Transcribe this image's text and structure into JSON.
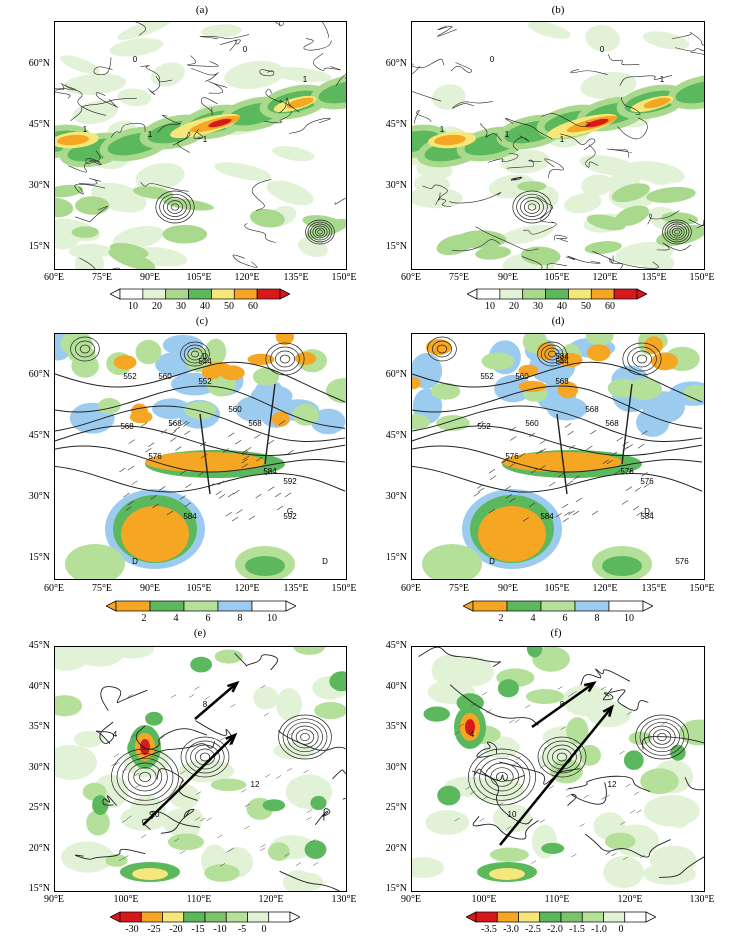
{
  "panels": [
    {
      "id": "a",
      "label": "(a)",
      "lat": [
        "60°N",
        "45°N",
        "30°N",
        "15°N"
      ],
      "lon": [
        "60°E",
        "75°E",
        "90°E",
        "105°E",
        "120°E",
        "135°E",
        "150°E"
      ],
      "colorbar": [
        "10",
        "20",
        "30",
        "40",
        "50",
        "60"
      ]
    },
    {
      "id": "b",
      "label": "(b)",
      "lat": [
        "60°N",
        "45°N",
        "30°N",
        "15°N"
      ],
      "lon": [
        "60°E",
        "75°E",
        "90°E",
        "105°E",
        "120°E",
        "135°E",
        "150°E"
      ],
      "colorbar": [
        "10",
        "20",
        "30",
        "40",
        "50",
        "60"
      ]
    },
    {
      "id": "c",
      "label": "(c)",
      "lat": [
        "60°N",
        "45°N",
        "30°N",
        "15°N"
      ],
      "lon": [
        "60°E",
        "75°E",
        "90°E",
        "105°E",
        "120°E",
        "135°E",
        "150°E"
      ],
      "colorbar": [
        "2",
        "4",
        "6",
        "8",
        "10"
      ],
      "contour_labels": [
        "552",
        "560",
        "544",
        "552",
        "568",
        "568",
        "560",
        "568",
        "576",
        "584",
        "592",
        "592",
        "584",
        "D",
        "D",
        "D",
        "G"
      ]
    },
    {
      "id": "d",
      "label": "(d)",
      "lat": [
        "60°N",
        "45°N",
        "30°N",
        "15°N"
      ],
      "lon": [
        "60°E",
        "75°E",
        "90°E",
        "105°E",
        "120°E",
        "135°E",
        "150°E"
      ],
      "colorbar": [
        "2",
        "4",
        "6",
        "8",
        "10"
      ],
      "contour_labels": [
        "552",
        "560",
        "544",
        "568",
        "552",
        "560",
        "568",
        "568",
        "576",
        "576",
        "576",
        "584",
        "584",
        "584",
        "576",
        "D",
        "D"
      ]
    },
    {
      "id": "e",
      "label": "(e)",
      "lat": [
        "45°N",
        "40°N",
        "35°N",
        "30°N",
        "25°N",
        "20°N",
        "15°N"
      ],
      "lon": [
        "90°E",
        "100°E",
        "110°E",
        "120°E",
        "130°E"
      ],
      "colorbar": [
        "-30",
        "-25",
        "-20",
        "-15",
        "-10",
        "-5",
        "0"
      ]
    },
    {
      "id": "f",
      "label": "(f)",
      "lat": [
        "45°N",
        "40°N",
        "35°N",
        "30°N",
        "25°N",
        "20°N",
        "15°N"
      ],
      "lon": [
        "90°E",
        "100°E",
        "110°E",
        "120°E",
        "130°E"
      ],
      "colorbar": [
        "-3.5",
        "-3.0",
        "-2.5",
        "-2.0",
        "-1.5",
        "-1.0",
        "0"
      ]
    }
  ],
  "colors": {
    "scale_ab": [
      "#ffffff",
      "#e2f2d6",
      "#a9d98d",
      "#5cb85c",
      "#f5e77a",
      "#f5a623",
      "#d7191c"
    ],
    "scale_cd": [
      "#f5a623",
      "#5cb85c",
      "#b4e09a",
      "#9ccbf0",
      "#ffffff"
    ],
    "scale_ef": [
      "#d7191c",
      "#f5a623",
      "#f5e77a",
      "#5cb85c",
      "#7cc36b",
      "#b4e09a",
      "#e2f2d6",
      "#ffffff"
    ]
  }
}
